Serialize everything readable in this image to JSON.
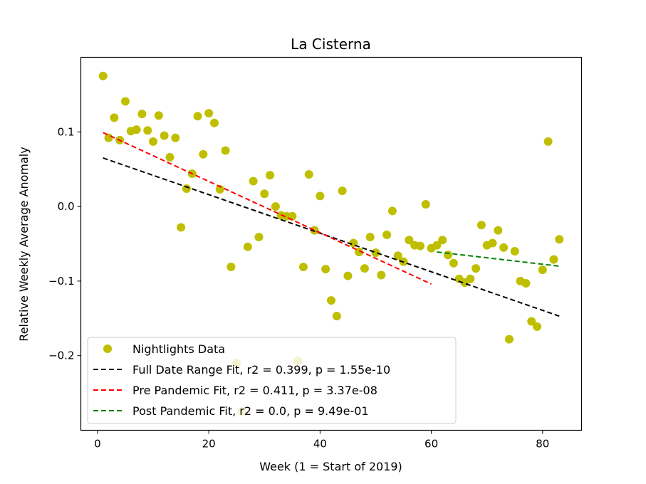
{
  "chart_data": {
    "type": "scatter",
    "title": "La Cisterna",
    "xlabel": "Week (1 = Start of 2019)",
    "ylabel": "Relative Weekly Average Anomaly",
    "xlim": [
      -3,
      87
    ],
    "ylim": [
      -0.3,
      0.2
    ],
    "xticks": [
      0,
      20,
      40,
      60,
      80
    ],
    "xtick_labels": [
      "0",
      "20",
      "40",
      "60",
      "80"
    ],
    "yticks": [
      -0.2,
      -0.1,
      0.0,
      0.1
    ],
    "ytick_labels": [
      "−0.2",
      "−0.1",
      "0.0",
      "0.1"
    ],
    "grid": false,
    "legend_position": "lower-left",
    "points": {
      "name": "Nightlights Data",
      "color": "#bfbf00",
      "data": [
        [
          1,
          0.175
        ],
        [
          2,
          0.092
        ],
        [
          3,
          0.119
        ],
        [
          4,
          0.089
        ],
        [
          5,
          0.141
        ],
        [
          6,
          0.101
        ],
        [
          7,
          0.103
        ],
        [
          8,
          0.124
        ],
        [
          9,
          0.102
        ],
        [
          10,
          0.087
        ],
        [
          11,
          0.122
        ],
        [
          12,
          0.095
        ],
        [
          13,
          0.066
        ],
        [
          14,
          0.092
        ],
        [
          15,
          -0.028
        ],
        [
          16,
          0.024
        ],
        [
          17,
          0.044
        ],
        [
          18,
          0.121
        ],
        [
          19,
          0.07
        ],
        [
          20,
          0.125
        ],
        [
          21,
          0.112
        ],
        [
          22,
          0.023
        ],
        [
          23,
          0.075
        ],
        [
          24,
          -0.081
        ],
        [
          25,
          -0.21
        ],
        [
          26,
          -0.275
        ],
        [
          27,
          -0.054
        ],
        [
          28,
          0.034
        ],
        [
          29,
          -0.041
        ],
        [
          30,
          0.017
        ],
        [
          31,
          0.042
        ],
        [
          32,
          0.0
        ],
        [
          33,
          -0.012
        ],
        [
          34,
          -0.013
        ],
        [
          35,
          -0.013
        ],
        [
          36,
          -0.207
        ],
        [
          37,
          -0.081
        ],
        [
          38,
          0.043
        ],
        [
          39,
          -0.032
        ],
        [
          40,
          0.014
        ],
        [
          41,
          -0.084
        ],
        [
          42,
          -0.126
        ],
        [
          43,
          -0.147
        ],
        [
          44,
          0.021
        ],
        [
          45,
          -0.093
        ],
        [
          46,
          -0.049
        ],
        [
          47,
          -0.061
        ],
        [
          48,
          -0.083
        ],
        [
          49,
          -0.041
        ],
        [
          50,
          -0.062
        ],
        [
          51,
          -0.092
        ],
        [
          52,
          -0.038
        ],
        [
          53,
          -0.006
        ],
        [
          54,
          -0.066
        ],
        [
          55,
          -0.074
        ],
        [
          56,
          -0.045
        ],
        [
          57,
          -0.052
        ],
        [
          58,
          -0.053
        ],
        [
          59,
          0.003
        ],
        [
          60,
          -0.056
        ],
        [
          61,
          -0.052
        ],
        [
          62,
          -0.045
        ],
        [
          63,
          -0.065
        ],
        [
          64,
          -0.076
        ],
        [
          65,
          -0.097
        ],
        [
          66,
          -0.102
        ],
        [
          67,
          -0.097
        ],
        [
          68,
          -0.083
        ],
        [
          69,
          -0.025
        ],
        [
          70,
          -0.052
        ],
        [
          71,
          -0.049
        ],
        [
          72,
          -0.032
        ],
        [
          73,
          -0.055
        ],
        [
          74,
          -0.178
        ],
        [
          75,
          -0.06
        ],
        [
          76,
          -0.1
        ],
        [
          77,
          -0.103
        ],
        [
          78,
          -0.154
        ],
        [
          79,
          -0.161
        ],
        [
          80,
          -0.085
        ],
        [
          81,
          0.087
        ],
        [
          82,
          -0.071
        ],
        [
          83,
          -0.044
        ]
      ]
    },
    "fits": [
      {
        "name": "Full Date Range Fit, r2 = 0.399, p = 1.55e-10",
        "color": "#000000",
        "x": [
          1,
          83
        ],
        "y": [
          0.065,
          -0.147
        ]
      },
      {
        "name": "Pre Pandemic Fit, r2 = 0.411, p = 3.37e-08",
        "color": "#ff0000",
        "x": [
          1,
          60
        ],
        "y": [
          0.099,
          -0.104
        ]
      },
      {
        "name": "Post Pandemic Fit, r2 = 0.0, p = 9.49e-01",
        "color": "#008000",
        "x": [
          61,
          83
        ],
        "y": [
          -0.061,
          -0.08
        ]
      }
    ]
  }
}
